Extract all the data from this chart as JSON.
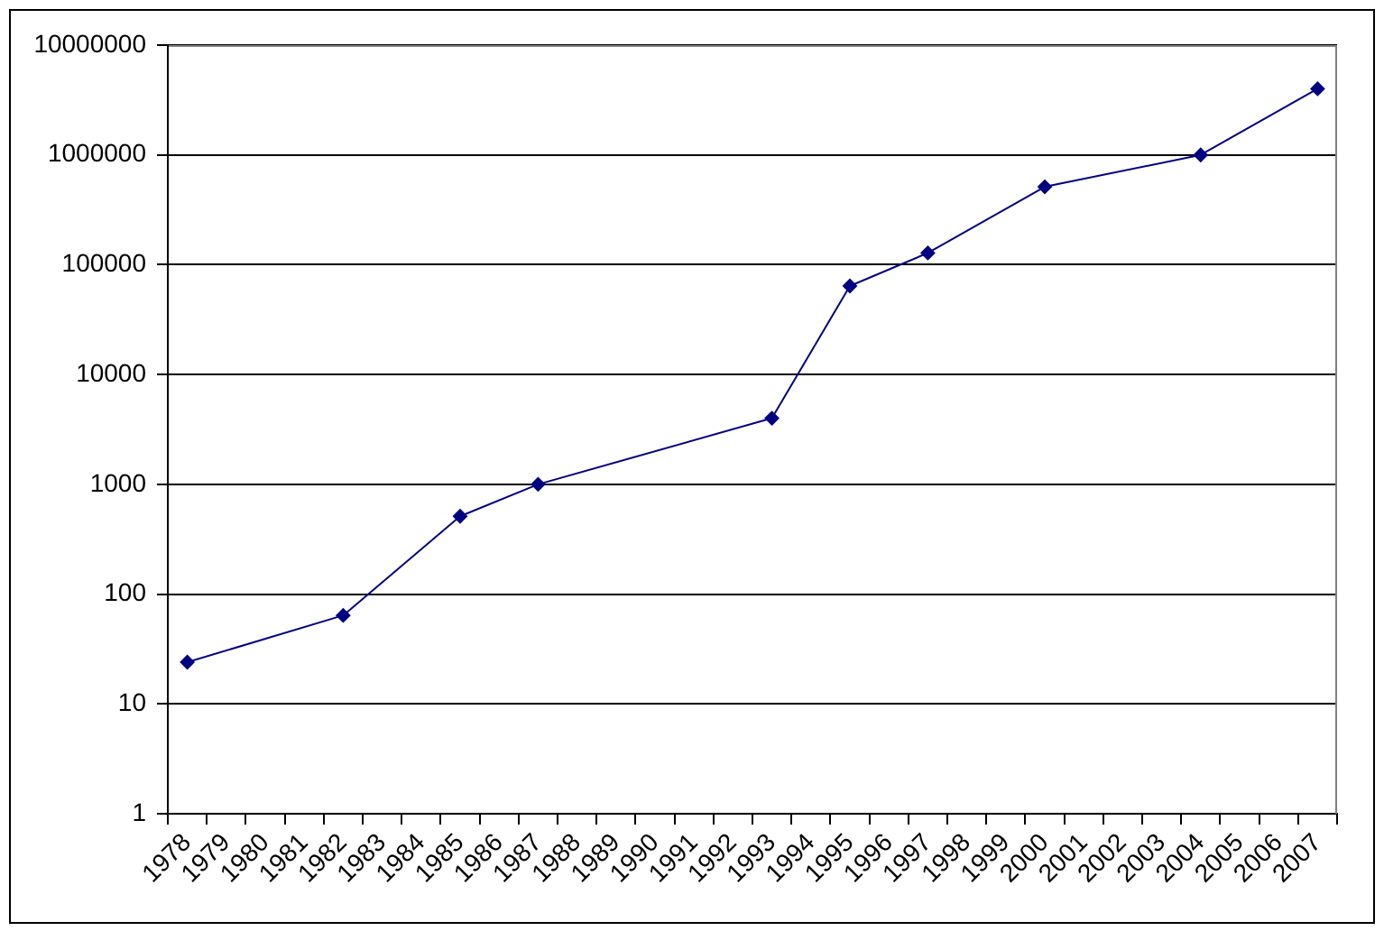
{
  "chart_data": {
    "type": "line",
    "categories": [
      "1978",
      "1979",
      "1980",
      "1981",
      "1982",
      "1983",
      "1984",
      "1985",
      "1986",
      "1987",
      "1988",
      "1989",
      "1990",
      "1991",
      "1992",
      "1993",
      "1994",
      "1995",
      "1996",
      "1997",
      "1998",
      "1999",
      "2000",
      "2001",
      "2002",
      "2003",
      "2004",
      "2005",
      "2006",
      "2007"
    ],
    "series": [
      {
        "color": "#000080",
        "values": [
          24,
          null,
          null,
          null,
          64,
          null,
          null,
          512,
          null,
          1000,
          null,
          null,
          null,
          null,
          null,
          4000,
          null,
          64000,
          null,
          128000,
          null,
          null,
          512000,
          null,
          null,
          null,
          1000000,
          null,
          null,
          4000000
        ]
      }
    ],
    "ylim": [
      1,
      10000000
    ],
    "yticks": [
      1,
      10,
      100,
      1000,
      10000,
      100000,
      1000000,
      10000000
    ],
    "log": "y",
    "grid": "y",
    "legend": false,
    "marker": "diamond",
    "line_style": "solid"
  }
}
